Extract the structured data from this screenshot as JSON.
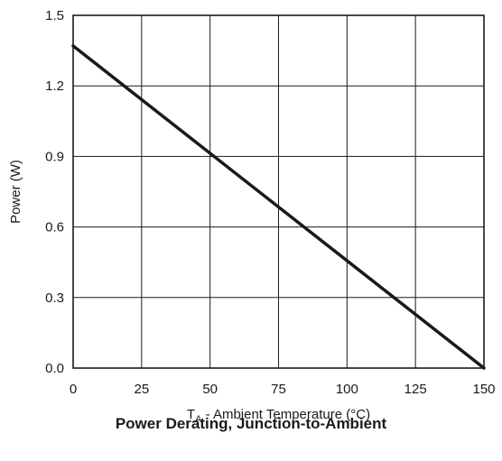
{
  "chart_data": {
    "type": "line",
    "caption": "Power Derating, Junction-to-Ambient",
    "xlabel_main": "T",
    "xlabel_sub": "A",
    "xlabel_rest": " - Ambient Temperature (°C)",
    "ylabel": "Power (W)",
    "xlim": [
      0,
      150
    ],
    "ylim": [
      0,
      1.5
    ],
    "xticks": [
      "0",
      "25",
      "50",
      "75",
      "100",
      "125",
      "150"
    ],
    "yticks": [
      "0.0",
      "0.3",
      "0.6",
      "0.9",
      "1.2",
      "1.5"
    ],
    "grid": true,
    "series": [
      {
        "x": [
          0,
          150
        ],
        "y": [
          1.37,
          0
        ]
      }
    ],
    "colors": {
      "line": "#1a1a1a",
      "grid": "#1a1a1a"
    }
  }
}
